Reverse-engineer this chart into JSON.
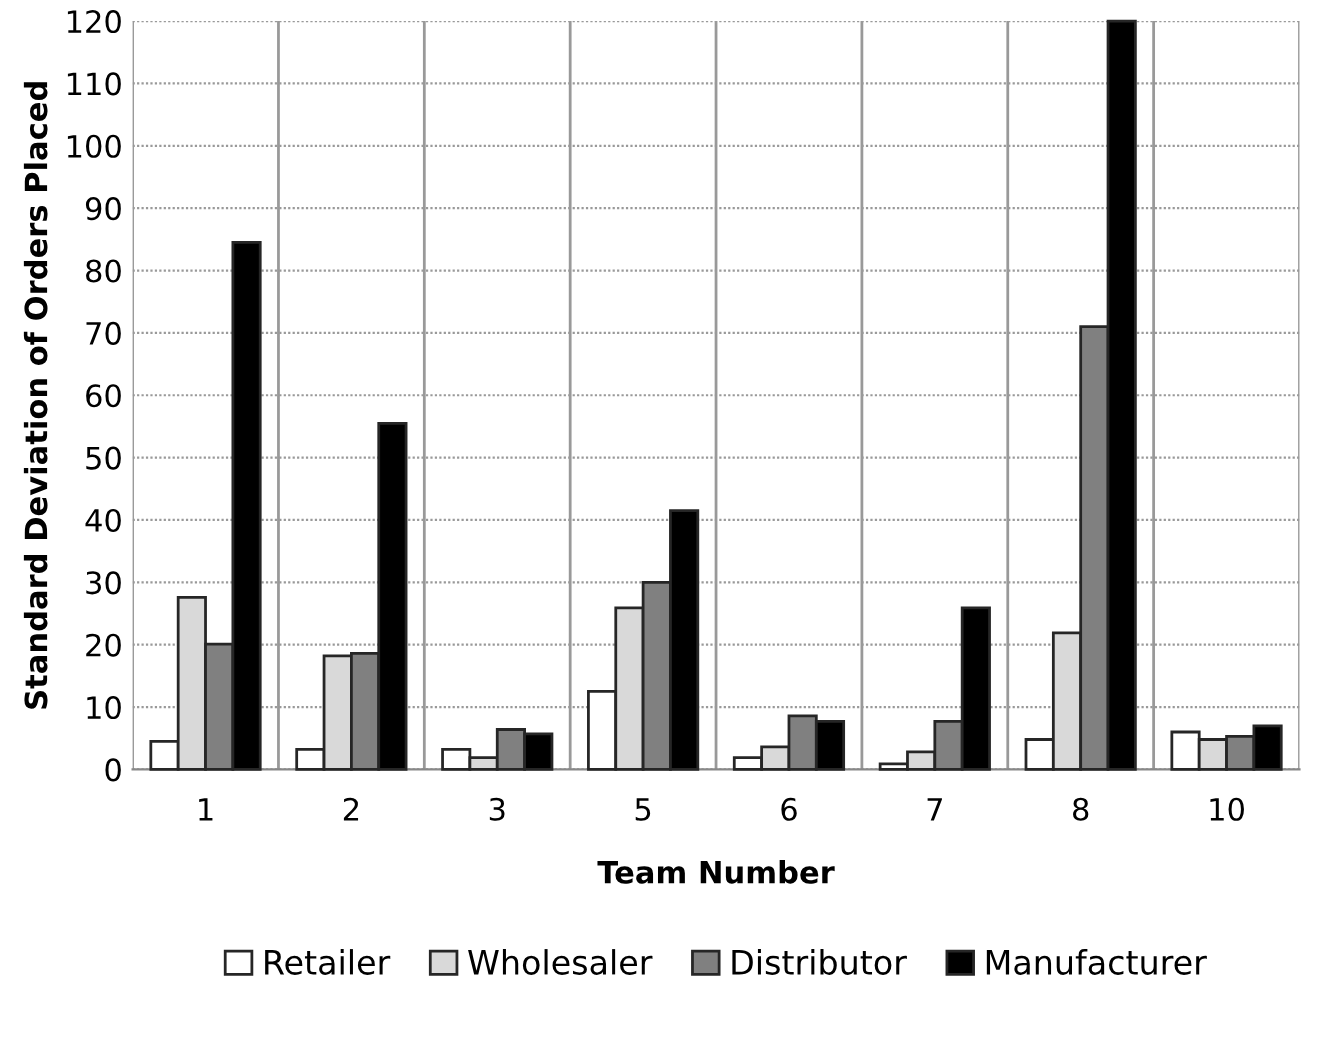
{
  "chart_data": {
    "type": "bar",
    "xlabel": "Team Number",
    "ylabel": "Standard Deviation of Orders Placed",
    "categories": [
      "1",
      "2",
      "3",
      "5",
      "6",
      "7",
      "8",
      "10"
    ],
    "series": [
      {
        "name": "Retailer",
        "color": "#ffffff",
        "values": [
          4.5,
          3.2,
          3.2,
          12.5,
          1.9,
          0.9,
          4.8,
          6.0
        ]
      },
      {
        "name": "Wholesaler",
        "color": "#d9d9d9",
        "values": [
          27.6,
          18.2,
          1.9,
          25.9,
          3.6,
          2.8,
          21.9,
          4.8
        ]
      },
      {
        "name": "Distributor",
        "color": "#808080",
        "values": [
          20.1,
          18.6,
          6.4,
          30.0,
          8.6,
          7.7,
          71.0,
          5.3
        ]
      },
      {
        "name": "Manufacturer",
        "color": "#000000",
        "values": [
          84.5,
          55.5,
          5.7,
          41.5,
          7.7,
          25.9,
          120,
          7.0
        ]
      }
    ],
    "ylim": [
      0,
      120
    ],
    "yticks": [
      0,
      10,
      20,
      30,
      40,
      50,
      60,
      70,
      80,
      90,
      100,
      110,
      120
    ],
    "grid": true,
    "legend": "bottom"
  }
}
